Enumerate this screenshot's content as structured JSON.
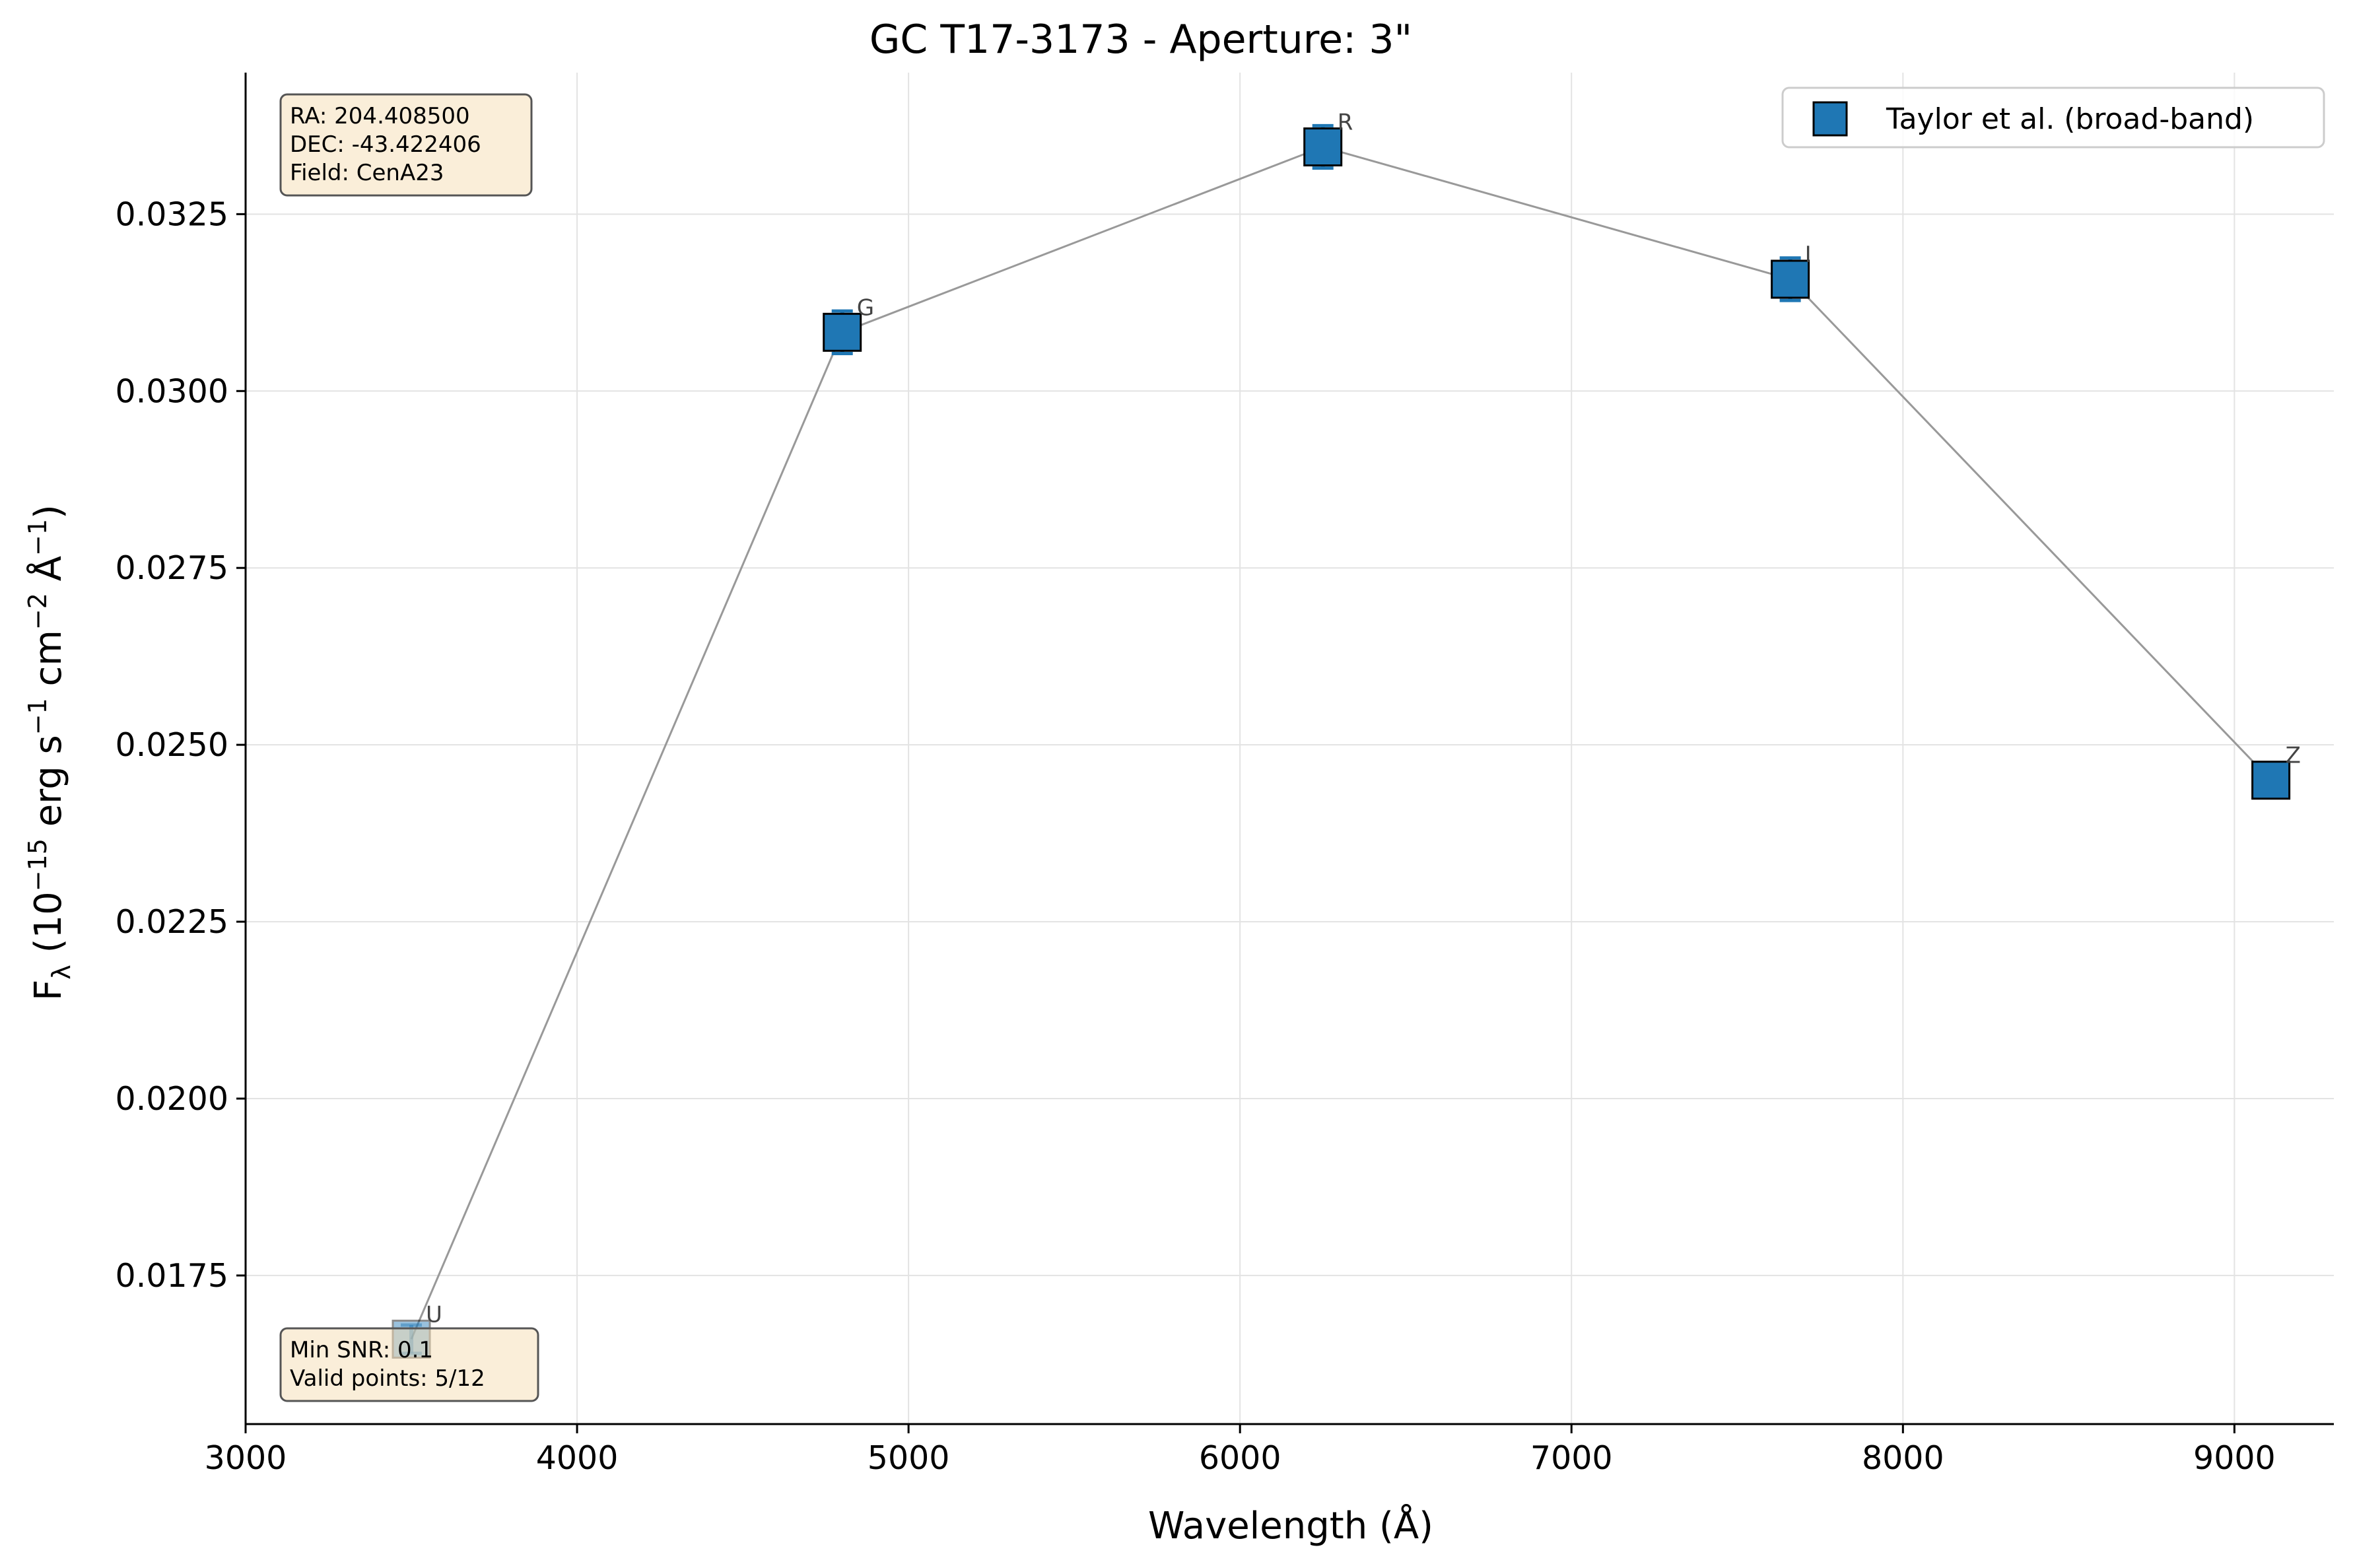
{
  "chart_data": {
    "type": "scatter",
    "title": "GC T17-3173 - Aperture: 3\"",
    "xlabel": "Wavelength (Å)",
    "ylabel": {
      "main": "F",
      "sub": "λ",
      "rest_prefix": " (10",
      "exp1": "−15",
      "rest_mid1": " erg s",
      "exp2": "−1",
      "rest_mid2": " cm",
      "exp3": "−2",
      "rest_mid3": " Å",
      "exp4": "−1",
      "rest_end": ")"
    },
    "xlim": [
      3000,
      9300
    ],
    "ylim": [
      0.0154,
      0.0345
    ],
    "xticks": [
      3000,
      4000,
      5000,
      6000,
      7000,
      8000,
      9000
    ],
    "xtick_labels": [
      "3000",
      "4000",
      "5000",
      "6000",
      "7000",
      "8000",
      "9000"
    ],
    "yticks": [
      0.0175,
      0.02,
      0.0225,
      0.025,
      0.0275,
      0.03,
      0.0325
    ],
    "ytick_labels": [
      "0.0175",
      "0.0200",
      "0.0225",
      "0.0250",
      "0.0275",
      "0.0300",
      "0.0325"
    ],
    "grid": true,
    "legend_position": "top-right",
    "series": [
      {
        "name": "Taylor et al. (broad-band)",
        "color": "#1f77b4",
        "marker": "square",
        "points": [
          {
            "band": "U",
            "x": 3500,
            "y": 0.0166,
            "yerr": 0.0002,
            "faded": true
          },
          {
            "band": "G",
            "x": 4800,
            "y": 0.03083,
            "yerr": 0.0003,
            "faded": false
          },
          {
            "band": "R",
            "x": 6250,
            "y": 0.03345,
            "yerr": 0.0003,
            "faded": false
          },
          {
            "band": "I",
            "x": 7660,
            "y": 0.03158,
            "yerr": 0.0003,
            "faded": false
          },
          {
            "band": "Z",
            "x": 9110,
            "y": 0.0245,
            "yerr": 0.0001,
            "faded": false
          }
        ]
      }
    ],
    "info_top": [
      "RA: 204.408500",
      "DEC: -43.422406",
      "Field: CenA23"
    ],
    "info_bottom": [
      "Min SNR: 0.1",
      "Valid points: 5/12"
    ]
  }
}
